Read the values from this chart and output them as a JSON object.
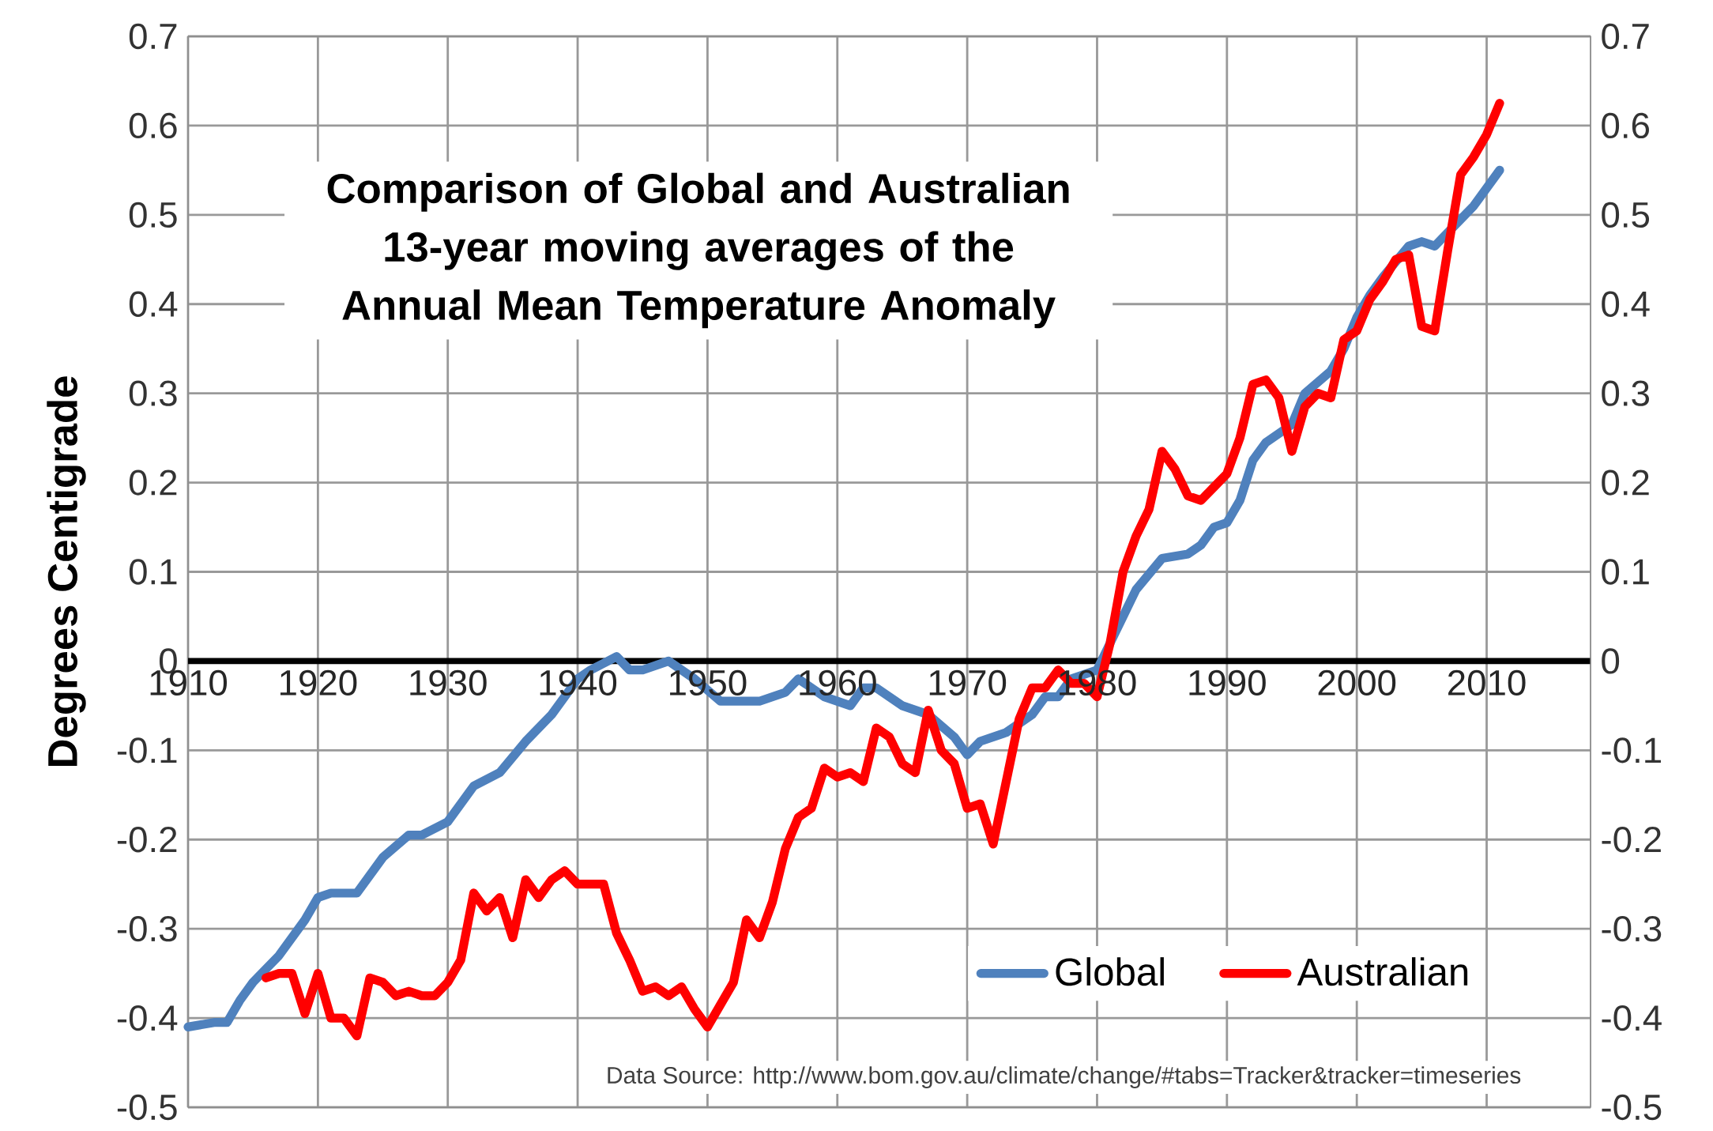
{
  "chart_data": {
    "type": "line",
    "title": "Comparison of Global and Australian 13-year moving averages of the Annual Mean Temperature Anomaly",
    "ylabel": "Degrees Centigrade",
    "annotations": [
      "Data Source: http://www.bom.gov.au/climate/change/#tabs=Tracker&tracker=timeseries"
    ],
    "series": [
      {
        "name": "Global",
        "color": "#4f81bd",
        "x": [
          1910,
          1912,
          1913,
          1914,
          1915,
          1917,
          1919,
          1920,
          1921,
          1923,
          1925,
          1927,
          1928,
          1930,
          1932,
          1934,
          1936,
          1938,
          1940,
          1941,
          1943,
          1944,
          1945,
          1947,
          1949,
          1951,
          1954,
          1956,
          1957,
          1959,
          1961,
          1962,
          1963,
          1965,
          1967,
          1969,
          1970,
          1971,
          1973,
          1975,
          1976,
          1977,
          1978,
          1980,
          1981,
          1982,
          1983,
          1985,
          1987,
          1988,
          1989,
          1990,
          1991,
          1992,
          1993,
          1995,
          1996,
          1998,
          1999,
          2000,
          2001,
          2002,
          2004,
          2005,
          2006,
          2008,
          2009,
          2011
        ],
        "values": [
          -0.41,
          -0.405,
          -0.405,
          -0.38,
          -0.36,
          -0.33,
          -0.29,
          -0.265,
          -0.26,
          -0.26,
          -0.22,
          -0.195,
          -0.195,
          -0.18,
          -0.14,
          -0.125,
          -0.09,
          -0.06,
          -0.02,
          -0.01,
          0.005,
          -0.01,
          -0.01,
          0.0,
          -0.02,
          -0.045,
          -0.045,
          -0.035,
          -0.02,
          -0.04,
          -0.05,
          -0.03,
          -0.03,
          -0.05,
          -0.06,
          -0.085,
          -0.105,
          -0.09,
          -0.08,
          -0.06,
          -0.04,
          -0.04,
          -0.02,
          -0.01,
          0.02,
          0.05,
          0.08,
          0.115,
          0.12,
          0.13,
          0.15,
          0.155,
          0.18,
          0.225,
          0.245,
          0.265,
          0.3,
          0.325,
          0.35,
          0.385,
          0.41,
          0.43,
          0.465,
          0.47,
          0.465,
          0.495,
          0.51,
          0.55
        ]
      },
      {
        "name": "Australian",
        "color": "#ff0000",
        "x": [
          1916,
          1917,
          1918,
          1919,
          1920,
          1921,
          1922,
          1923,
          1924,
          1925,
          1926,
          1927,
          1928,
          1929,
          1930,
          1931,
          1932,
          1933,
          1934,
          1935,
          1936,
          1937,
          1938,
          1939,
          1940,
          1941,
          1942,
          1943,
          1944,
          1945,
          1946,
          1947,
          1948,
          1949,
          1950,
          1951,
          1952,
          1953,
          1954,
          1955,
          1956,
          1957,
          1958,
          1959,
          1960,
          1961,
          1962,
          1963,
          1964,
          1965,
          1966,
          1967,
          1968,
          1969,
          1970,
          1971,
          1972,
          1973,
          1974,
          1975,
          1976,
          1977,
          1978,
          1979,
          1980,
          1981,
          1982,
          1983,
          1984,
          1985,
          1986,
          1987,
          1988,
          1989,
          1990,
          1991,
          1992,
          1993,
          1994,
          1995,
          1996,
          1997,
          1998,
          1999,
          2000,
          2001,
          2002,
          2003,
          2004,
          2005,
          2006,
          2007,
          2008,
          2009,
          2010,
          2011
        ],
        "values": [
          -0.355,
          -0.35,
          -0.35,
          -0.395,
          -0.35,
          -0.4,
          -0.4,
          -0.42,
          -0.355,
          -0.36,
          -0.375,
          -0.37,
          -0.375,
          -0.375,
          -0.36,
          -0.335,
          -0.26,
          -0.28,
          -0.265,
          -0.31,
          -0.245,
          -0.265,
          -0.245,
          -0.235,
          -0.25,
          -0.25,
          -0.25,
          -0.305,
          -0.335,
          -0.37,
          -0.365,
          -0.375,
          -0.365,
          -0.39,
          -0.41,
          -0.385,
          -0.36,
          -0.29,
          -0.31,
          -0.27,
          -0.21,
          -0.175,
          -0.165,
          -0.12,
          -0.13,
          -0.125,
          -0.135,
          -0.075,
          -0.085,
          -0.115,
          -0.125,
          -0.055,
          -0.1,
          -0.115,
          -0.165,
          -0.16,
          -0.205,
          -0.135,
          -0.065,
          -0.03,
          -0.03,
          -0.01,
          -0.025,
          -0.025,
          -0.04,
          0.02,
          0.1,
          0.14,
          0.17,
          0.235,
          0.215,
          0.185,
          0.18,
          0.195,
          0.21,
          0.25,
          0.31,
          0.315,
          0.295,
          0.235,
          0.285,
          0.3,
          0.295,
          0.36,
          0.37,
          0.405,
          0.425,
          0.45,
          0.455,
          0.375,
          0.37,
          0.46,
          0.545,
          0.565,
          0.59,
          0.625
        ]
      }
    ],
    "xlim": [
      1910,
      2018
    ],
    "xticks": [
      1910,
      1920,
      1930,
      1940,
      1950,
      1960,
      1970,
      1980,
      1990,
      2000,
      2010
    ],
    "ylim": [
      -0.5,
      0.7
    ],
    "yticks": [
      -0.5,
      -0.4,
      -0.3,
      -0.2,
      -0.1,
      0,
      0.1,
      0.2,
      0.3,
      0.4,
      0.5,
      0.6,
      0.7
    ],
    "y2lim": [
      -0.5,
      0.7
    ],
    "y2ticks": [
      -0.5,
      -0.4,
      -0.3,
      -0.2,
      -0.1,
      0,
      0.1,
      0.2,
      0.3,
      0.4,
      0.5,
      0.6,
      0.7
    ],
    "grid": true,
    "legend": "bottom right",
    "marker": "none",
    "line_style": "solid"
  }
}
